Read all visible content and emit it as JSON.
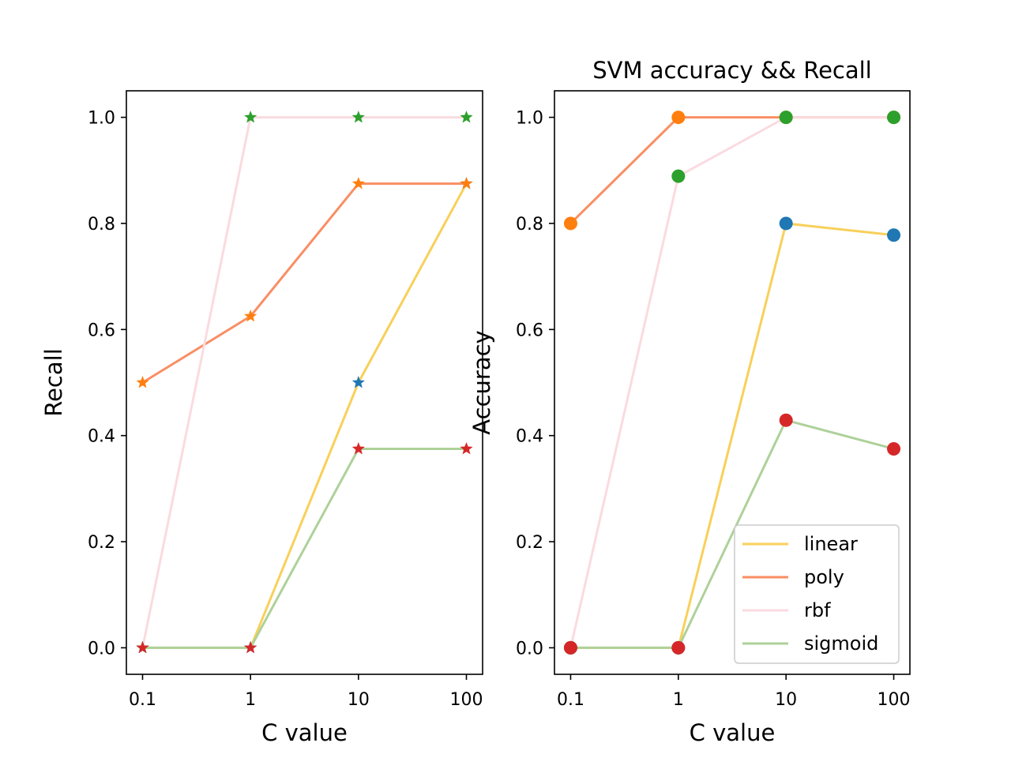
{
  "chart_data": [
    {
      "type": "line",
      "title": "",
      "xlabel": "C value",
      "ylabel": "Recall",
      "x_scale": "log",
      "x": [
        0.1,
        1,
        10,
        100
      ],
      "x_tick_labels": [
        "0.1",
        "1",
        "10",
        "100"
      ],
      "y_ticks": [
        0.0,
        0.2,
        0.4,
        0.6,
        0.8,
        1.0
      ],
      "y_tick_labels": [
        "0.0",
        "0.2",
        "0.4",
        "0.6",
        "0.8",
        "1.0"
      ],
      "ylim": [
        -0.05,
        1.05
      ],
      "marker": "star",
      "grid": false,
      "series": [
        {
          "name": "linear",
          "line_color": "#f8d05a",
          "marker_color": "#1f77b4",
          "values": [
            0.0,
            0.0,
            0.5,
            0.875
          ]
        },
        {
          "name": "poly",
          "line_color": "#f98e63",
          "marker_color": "#ff7f0e",
          "values": [
            0.5,
            0.625,
            0.875,
            0.875
          ]
        },
        {
          "name": "rbf",
          "line_color": "#fadbe0",
          "marker_color": "#2ca02c",
          "values": [
            0.0,
            1.0,
            1.0,
            1.0
          ]
        },
        {
          "name": "sigmoid",
          "line_color": "#aed19a",
          "marker_color": "#d62728",
          "values": [
            0.0,
            0.0,
            0.375,
            0.375
          ]
        }
      ]
    },
    {
      "type": "line",
      "title": "SVM accuracy && Recall",
      "xlabel": "C value",
      "ylabel": "Accuracy",
      "x_scale": "log",
      "x": [
        0.1,
        1,
        10,
        100
      ],
      "x_tick_labels": [
        "0.1",
        "1",
        "10",
        "100"
      ],
      "y_ticks": [
        0.0,
        0.2,
        0.4,
        0.6,
        0.8,
        1.0
      ],
      "y_tick_labels": [
        "0.0",
        "0.2",
        "0.4",
        "0.6",
        "0.8",
        "1.0"
      ],
      "ylim": [
        -0.05,
        1.05
      ],
      "marker": "circle",
      "grid": false,
      "legend": "lower-right",
      "series": [
        {
          "name": "linear",
          "line_color": "#f8d05a",
          "marker_color": "#1f77b4",
          "values": [
            0.0,
            0.0,
            0.8,
            0.778
          ]
        },
        {
          "name": "poly",
          "line_color": "#f98e63",
          "marker_color": "#ff7f0e",
          "values": [
            0.8,
            1.0,
            1.0,
            1.0
          ]
        },
        {
          "name": "rbf",
          "line_color": "#fadbe0",
          "marker_color": "#2ca02c",
          "values": [
            0.0,
            0.889,
            1.0,
            1.0
          ]
        },
        {
          "name": "sigmoid",
          "line_color": "#aed19a",
          "marker_color": "#d62728",
          "values": [
            0.0,
            0.0,
            0.429,
            0.375
          ]
        }
      ]
    }
  ]
}
